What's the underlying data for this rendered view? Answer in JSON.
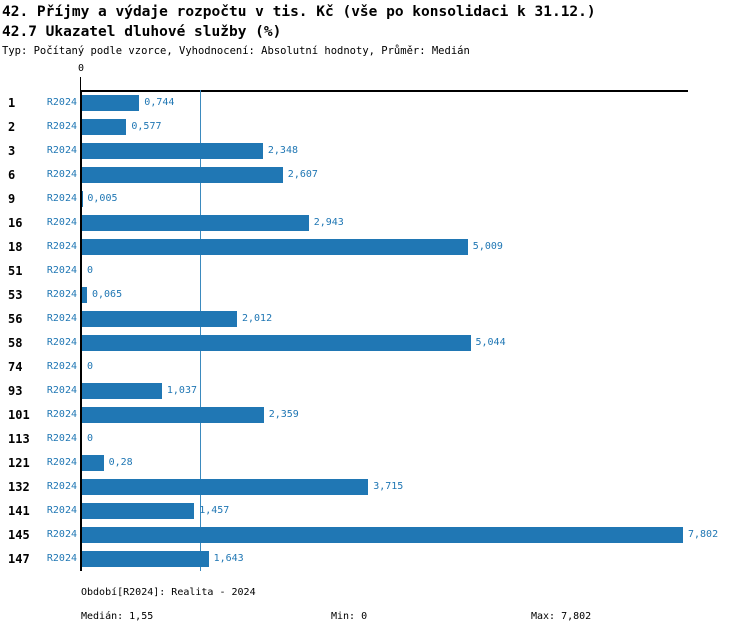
{
  "header": {
    "title": "42. Příjmy a výdaje rozpočtu v tis. Kč (vše po konsolidaci k 31.12.)",
    "subtitle": "42.7 Ukazatel dluhové služby (%)",
    "meta_line": "Typ: Počítaný podle vzorce, Vyhodnocení: Absolutní hodnoty, Průměr: Medián"
  },
  "chart_data": {
    "type": "bar",
    "orientation": "horizontal",
    "series_label": "R2024",
    "categories": [
      "1",
      "2",
      "3",
      "6",
      "9",
      "16",
      "18",
      "51",
      "53",
      "56",
      "58",
      "74",
      "93",
      "101",
      "113",
      "121",
      "132",
      "141",
      "145",
      "147"
    ],
    "values": [
      0.744,
      0.577,
      2.348,
      2.607,
      0.005,
      2.943,
      5.009,
      0,
      0.065,
      2.012,
      5.044,
      0,
      1.037,
      2.359,
      0,
      0.28,
      3.715,
      1.457,
      7.802,
      1.643
    ],
    "value_labels": [
      "0,744",
      "0,577",
      "2,348",
      "2,607",
      "0,005",
      "2,943",
      "5,009",
      "0",
      "0,065",
      "2,012",
      "5,044",
      "0",
      "1,037",
      "2,359",
      "0",
      "0,28",
      "3,715",
      "1,457",
      "7,802",
      "1,643"
    ],
    "axis": {
      "origin_label": "0",
      "xlim": [
        0,
        7.88
      ],
      "gridlines": false
    },
    "median_value": 1.55,
    "colors": {
      "bar": "#2077b4",
      "value_text": "#2077b4",
      "period_text": "#2077b4",
      "median_line": "#3b8abe",
      "axis": "#000000"
    }
  },
  "footer": {
    "period": "Období[R2024]: Realita - 2024",
    "median": "Medián: 1,55",
    "min": "Min: 0",
    "max": "Max: 7,802"
  }
}
